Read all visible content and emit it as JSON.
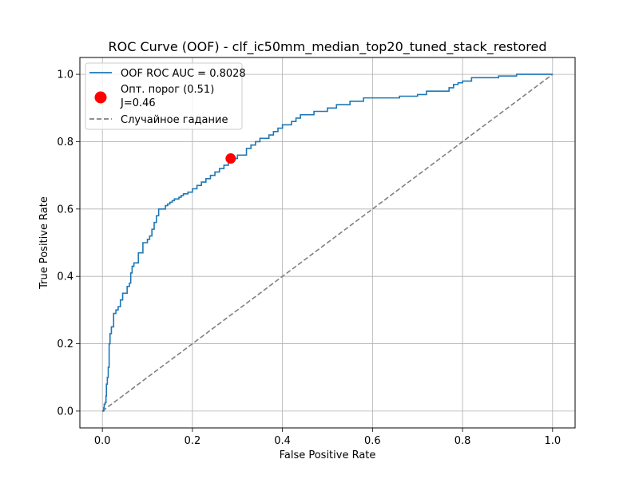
{
  "chart_data": {
    "type": "line",
    "title": "ROC Curve (OOF) - clf_ic50mm_median_top20_tuned_stack_restored",
    "xlabel": "False Positive Rate",
    "ylabel": "True Positive Rate",
    "xlim": [
      -0.05,
      1.05
    ],
    "ylim": [
      -0.05,
      1.05
    ],
    "grid": true,
    "legend_position": "top-left",
    "x_ticks": [
      "0.0",
      "0.2",
      "0.4",
      "0.6",
      "0.8",
      "1.0"
    ],
    "y_ticks": [
      "0.0",
      "0.2",
      "0.4",
      "0.6",
      "0.8",
      "1.0"
    ],
    "series": [
      {
        "name": "OOF ROC AUC = 0.8028",
        "color": "#1f77b4",
        "style": "solid-step",
        "x": [
          0.0,
          0.003,
          0.004,
          0.006,
          0.008,
          0.009,
          0.011,
          0.013,
          0.015,
          0.017,
          0.02,
          0.025,
          0.03,
          0.035,
          0.04,
          0.045,
          0.05,
          0.055,
          0.06,
          0.063,
          0.066,
          0.07,
          0.075,
          0.08,
          0.09,
          0.1,
          0.105,
          0.11,
          0.115,
          0.12,
          0.125,
          0.13,
          0.14,
          0.145,
          0.15,
          0.155,
          0.16,
          0.17,
          0.175,
          0.18,
          0.19,
          0.2,
          0.21,
          0.22,
          0.23,
          0.24,
          0.25,
          0.26,
          0.27,
          0.28,
          0.285,
          0.3,
          0.32,
          0.33,
          0.34,
          0.35,
          0.37,
          0.38,
          0.39,
          0.4,
          0.42,
          0.43,
          0.44,
          0.45,
          0.47,
          0.5,
          0.52,
          0.55,
          0.58,
          0.6,
          0.63,
          0.66,
          0.7,
          0.72,
          0.74,
          0.77,
          0.78,
          0.79,
          0.8,
          0.82,
          0.85,
          0.88,
          0.92,
          0.96,
          1.0
        ],
        "y": [
          0.0,
          0.01,
          0.02,
          0.025,
          0.045,
          0.08,
          0.1,
          0.13,
          0.2,
          0.23,
          0.25,
          0.29,
          0.3,
          0.31,
          0.33,
          0.35,
          0.35,
          0.37,
          0.38,
          0.41,
          0.43,
          0.44,
          0.44,
          0.47,
          0.5,
          0.51,
          0.52,
          0.54,
          0.56,
          0.58,
          0.6,
          0.6,
          0.61,
          0.615,
          0.62,
          0.625,
          0.63,
          0.635,
          0.64,
          0.645,
          0.65,
          0.66,
          0.67,
          0.68,
          0.69,
          0.7,
          0.71,
          0.72,
          0.73,
          0.74,
          0.75,
          0.76,
          0.78,
          0.79,
          0.8,
          0.81,
          0.82,
          0.83,
          0.84,
          0.85,
          0.86,
          0.87,
          0.88,
          0.88,
          0.89,
          0.9,
          0.91,
          0.92,
          0.93,
          0.93,
          0.93,
          0.935,
          0.94,
          0.95,
          0.95,
          0.96,
          0.97,
          0.975,
          0.98,
          0.99,
          0.99,
          0.995,
          1.0,
          1.0,
          1.0
        ]
      },
      {
        "name": "Оптимальный порог",
        "color": "#ff0000",
        "style": "marker",
        "legend_line1": "Опт. порог (0.51)",
        "legend_line2": "J=0.46",
        "x": [
          0.285
        ],
        "y": [
          0.75
        ]
      },
      {
        "name": "Случайное гадание",
        "color": "#808080",
        "style": "dashed",
        "x": [
          0.0,
          1.0
        ],
        "y": [
          0.0,
          1.0
        ]
      }
    ]
  }
}
